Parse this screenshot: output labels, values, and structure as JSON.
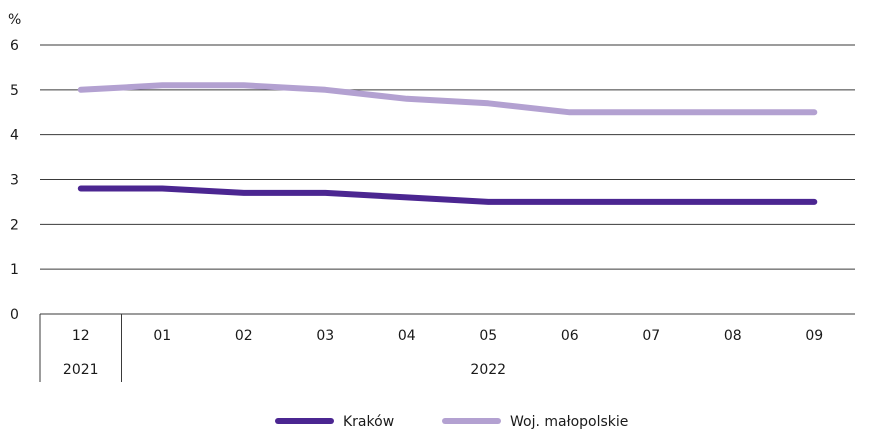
{
  "chart_data": {
    "type": "line",
    "ylabel": "%",
    "ylim": [
      0,
      6
    ],
    "yticks": [
      "0",
      "1",
      "2",
      "3",
      "4",
      "5",
      "6"
    ],
    "categories": [
      "12",
      "01",
      "02",
      "03",
      "04",
      "05",
      "06",
      "07",
      "08",
      "09"
    ],
    "year_groups": [
      {
        "label": "2021",
        "span": 1
      },
      {
        "label": "2022",
        "span": 9
      }
    ],
    "series": [
      {
        "name": "Kraków",
        "color": "#4b2691",
        "values": [
          2.8,
          2.8,
          2.7,
          2.7,
          2.6,
          2.5,
          2.5,
          2.5,
          2.5,
          2.5
        ]
      },
      {
        "name": "Woj. małopolskie",
        "color": "#b3a1d1",
        "values": [
          5.0,
          5.1,
          5.1,
          5.0,
          4.8,
          4.7,
          4.5,
          4.5,
          4.5,
          4.5
        ]
      }
    ],
    "grid": true,
    "legend": "bottom-center"
  }
}
